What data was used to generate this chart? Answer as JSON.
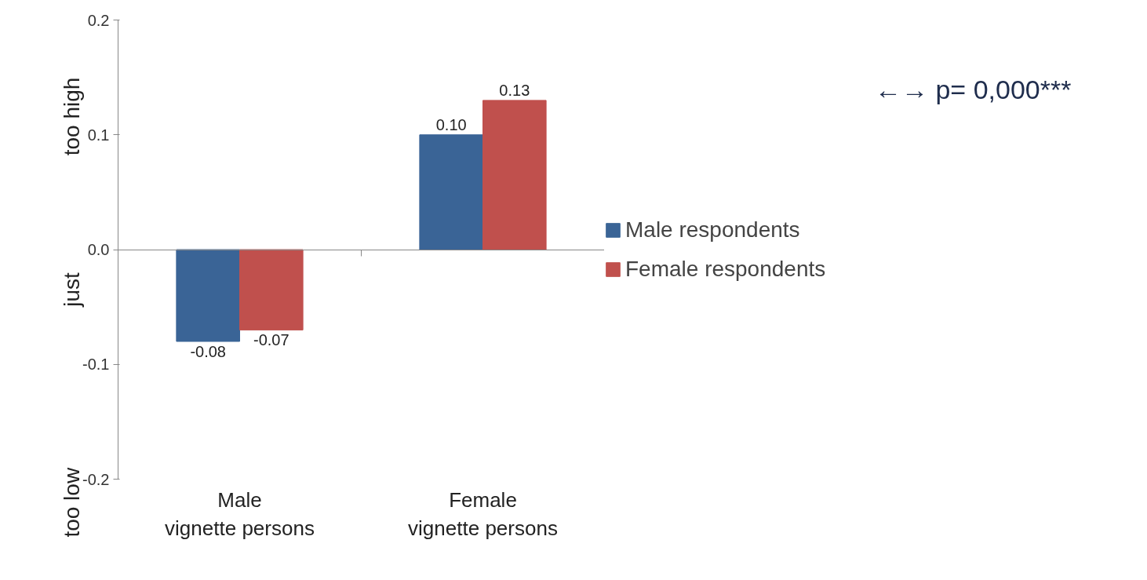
{
  "chart_data": {
    "type": "bar",
    "categories": [
      "Male\nvignette persons",
      "Female\nvignette persons"
    ],
    "series": [
      {
        "name": "Male respondents",
        "color": "#3a6496",
        "values": [
          -0.08,
          0.1
        ],
        "value_labels": [
          "-0.08",
          "0.10"
        ]
      },
      {
        "name": "Female respondents",
        "color": "#c0504d",
        "values": [
          -0.07,
          0.13
        ],
        "value_labels": [
          "-0.07",
          "0.13"
        ]
      }
    ],
    "ylim": [
      -0.2,
      0.2
    ],
    "yticks": [
      {
        "value": -0.2,
        "label": "-0.2"
      },
      {
        "value": -0.1,
        "label": "-0.1"
      },
      {
        "value": 0,
        "label": "0.0"
      },
      {
        "value": 0.1,
        "label": "0.1"
      },
      {
        "value": 0.2,
        "label": "0.2"
      }
    ],
    "legend": "right",
    "annotations": [
      "too high",
      "just",
      "too low",
      "←→ p= 0,000***"
    ]
  }
}
